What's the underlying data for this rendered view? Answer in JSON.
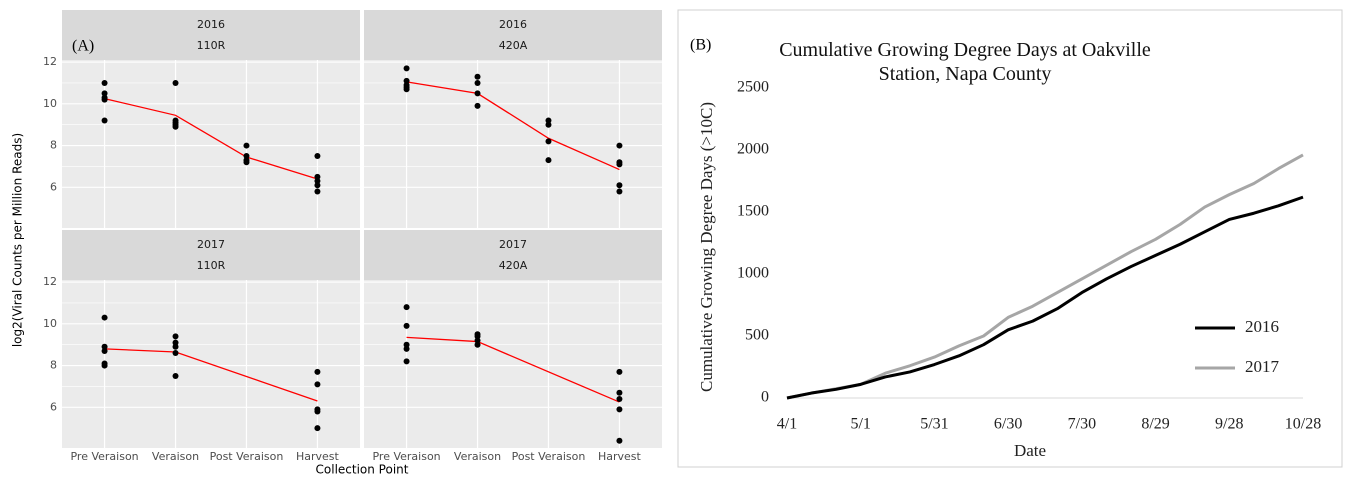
{
  "chart_data": [
    {
      "type": "faceted_scatter",
      "label": "(A)",
      "x_label": "Collection Point",
      "y_label": "log2(Viral Counts per Million Reads)",
      "categories": [
        "Pre Veraison",
        "Veraison",
        "Post Veraison",
        "Harvest"
      ],
      "ylim": [
        4.05,
        12.1
      ],
      "yticks": [
        6,
        8,
        10,
        12
      ],
      "point_color": "#000000",
      "line_color": "#ff0000",
      "facets": [
        {
          "year": "2016",
          "cultivar": "110R",
          "points": [
            [
              11.0,
              10.5,
              10.3,
              10.2,
              9.2
            ],
            [
              11.0,
              9.2,
              9.1,
              9.0,
              8.9
            ],
            [
              8.0,
              7.5,
              7.3,
              7.2
            ],
            [
              7.5,
              6.5,
              6.3,
              6.1,
              5.8
            ]
          ],
          "mean_line": {
            "categories": [
              "Pre Veraison",
              "Veraison",
              "Post Veraison",
              "Harvest"
            ],
            "values": [
              10.25,
              9.45,
              7.45,
              6.4
            ]
          }
        },
        {
          "year": "2016",
          "cultivar": "420A",
          "points": [
            [
              11.7,
              11.1,
              10.9,
              10.8,
              10.7
            ],
            [
              11.3,
              11.0,
              10.5,
              9.9
            ],
            [
              9.2,
              9.0,
              8.2,
              7.3
            ],
            [
              8.0,
              7.2,
              7.1,
              6.1,
              5.8
            ]
          ],
          "mean_line": {
            "categories": [
              "Pre Veraison",
              "Veraison",
              "Post Veraison",
              "Harvest"
            ],
            "values": [
              11.05,
              10.5,
              8.35,
              6.85
            ]
          }
        },
        {
          "year": "2017",
          "cultivar": "110R",
          "points": [
            [
              10.3,
              8.9,
              8.7,
              8.1,
              8.0
            ],
            [
              9.4,
              9.1,
              8.9,
              8.6,
              7.5
            ],
            [],
            [
              7.7,
              7.1,
              5.9,
              5.8,
              5.0
            ]
          ],
          "mean_line": {
            "categories": [
              "Pre Veraison",
              "Veraison",
              "Harvest"
            ],
            "values": [
              8.8,
              8.65,
              6.3
            ]
          }
        },
        {
          "year": "2017",
          "cultivar": "420A",
          "points": [
            [
              10.8,
              9.9,
              9.0,
              8.8,
              8.2
            ],
            [
              9.5,
              9.4,
              9.2,
              9.0
            ],
            [],
            [
              7.7,
              6.7,
              6.4,
              5.9,
              4.4
            ]
          ],
          "mean_line": {
            "categories": [
              "Pre Veraison",
              "Veraison",
              "Harvest"
            ],
            "values": [
              9.35,
              9.15,
              6.25
            ]
          }
        }
      ]
    },
    {
      "type": "line",
      "label": "(B)",
      "title": "Cumulative Growing Degree Days at Oakville Station, Napa County",
      "x_label": "Date",
      "y_label": "Cumulative Growing Degree Days (>10C)",
      "x": [
        "4/1",
        "4/11",
        "4/21",
        "5/1",
        "5/11",
        "5/21",
        "5/31",
        "6/10",
        "6/20",
        "6/30",
        "7/10",
        "7/20",
        "7/30",
        "8/9",
        "8/19",
        "8/29",
        "9/8",
        "9/18",
        "9/28",
        "10/8",
        "10/18",
        "10/28"
      ],
      "xlim": [
        "4/1",
        "10/28"
      ],
      "xticks": [
        "4/1",
        "5/1",
        "5/31",
        "6/30",
        "7/30",
        "8/29",
        "9/28",
        "10/28"
      ],
      "ylim": [
        0,
        2500
      ],
      "yticks": [
        0,
        500,
        1000,
        1500,
        2000,
        2500
      ],
      "legend": "lower right",
      "series": [
        {
          "name": "2016",
          "color": "#000000",
          "values": [
            0,
            40,
            70,
            110,
            170,
            210,
            270,
            340,
            430,
            550,
            620,
            720,
            850,
            960,
            1060,
            1150,
            1240,
            1340,
            1440,
            1490,
            1550,
            1620
          ]
        },
        {
          "name": "2017",
          "color": "#a6a6a6",
          "values": [
            0,
            40,
            75,
            110,
            200,
            260,
            330,
            420,
            500,
            650,
            740,
            850,
            960,
            1070,
            1180,
            1280,
            1400,
            1540,
            1640,
            1730,
            1850,
            1960
          ]
        }
      ]
    }
  ]
}
